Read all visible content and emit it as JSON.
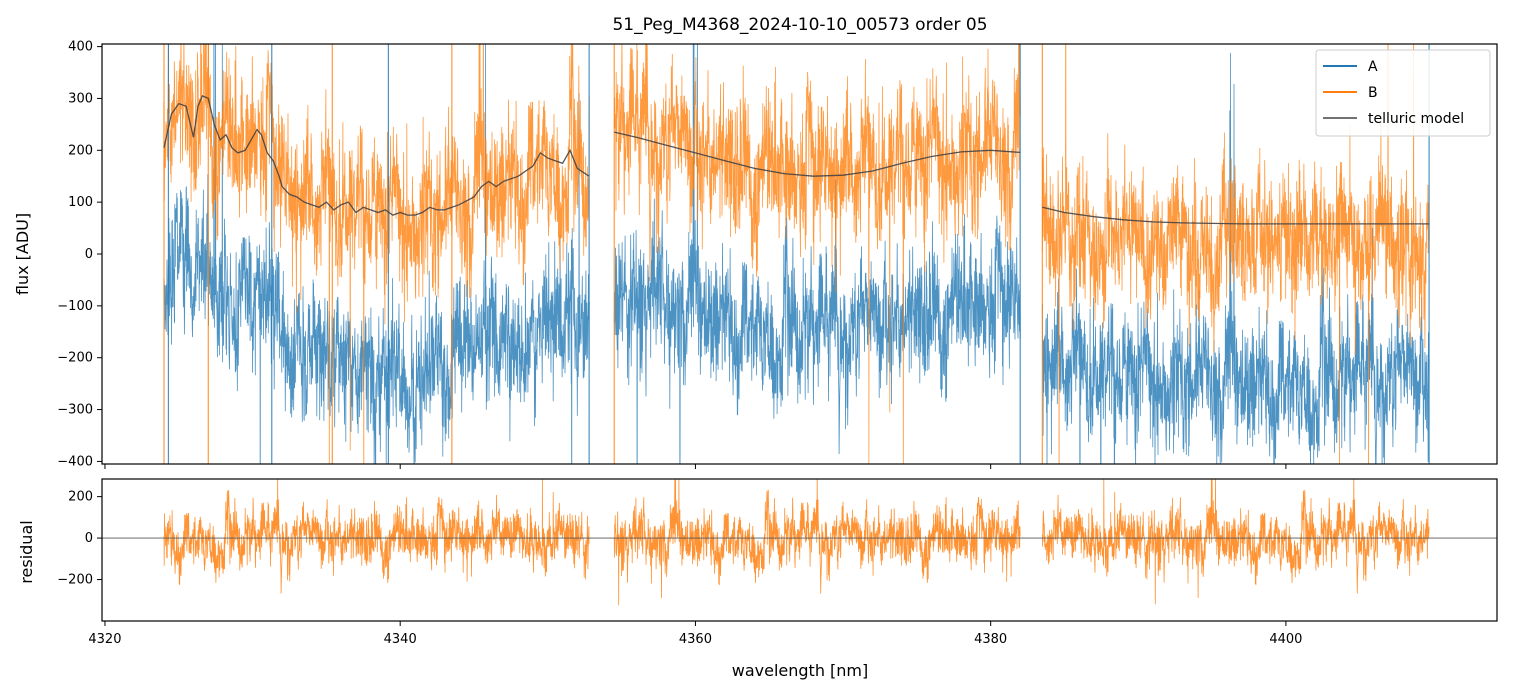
{
  "chart_data": [
    {
      "type": "line",
      "panel": "top",
      "title": "51_Peg_M4368_2024-10-10_00573  order 05",
      "xlabel": "",
      "ylabel": "flux [ADU]",
      "xlim": [
        4319.8,
        4414.3
      ],
      "ylim": [
        -405,
        405
      ],
      "yticks": [
        400,
        300,
        200,
        100,
        0,
        -100,
        -200,
        -300,
        -400
      ],
      "xticks": [
        4320,
        4340,
        4360,
        4380,
        4400
      ],
      "segments": [
        [
          4324.0,
          4352.8
        ],
        [
          4354.5,
          4382.0
        ],
        [
          4383.5,
          4409.7
        ]
      ],
      "series": [
        {
          "name": "A",
          "color": "#1f77b4",
          "mean_level": -170,
          "noise_amplitude": 90,
          "description_values": {
            "x_start": 4324.0,
            "x_end": 4409.7,
            "typical_range": [
              -330,
              0
            ]
          }
        },
        {
          "name": "B",
          "color": "#ff7f0e",
          "mean_level": 150,
          "noise_amplitude": 110,
          "description_values": {
            "x_start": 4324.0,
            "x_end": 4409.7,
            "typical_range": [
              0,
              400
            ]
          }
        },
        {
          "name": "telluric model",
          "color": "#444444",
          "x": [
            4324.0,
            4324.5,
            4325.0,
            4325.5,
            4326.0,
            4326.3,
            4326.6,
            4327.0,
            4327.4,
            4327.8,
            4328.2,
            4328.6,
            4329.0,
            4329.5,
            4330.0,
            4330.3,
            4330.6,
            4331.0,
            4331.4,
            4331.8,
            4332.0,
            4332.5,
            4333.0,
            4333.5,
            4334.0,
            4334.5,
            4335.0,
            4335.5,
            4336.0,
            4336.5,
            4337.0,
            4337.5,
            4338.0,
            4338.5,
            4339.0,
            4339.5,
            4340.0,
            4340.5,
            4341.0,
            4341.5,
            4342.0,
            4342.5,
            4343.0,
            4343.5,
            4344.0,
            4345.0,
            4345.5,
            4346.0,
            4346.5,
            4347.0,
            4348.0,
            4349.0,
            4349.5,
            4350.0,
            4350.5,
            4351.0,
            4351.5,
            4352.0,
            4352.8,
            4354.5,
            4356.0,
            4358.0,
            4360.0,
            4362.0,
            4364.0,
            4366.0,
            4368.0,
            4370.0,
            4372.0,
            4374.0,
            4376.0,
            4378.0,
            4380.0,
            4382.0,
            4383.5,
            4385.0,
            4387.0,
            4389.0,
            4391.0,
            4393.0,
            4395.0,
            4397.0,
            4399.0,
            4401.0,
            4403.0,
            4405.0,
            4407.0,
            4409.7
          ],
          "y": [
            205,
            270,
            290,
            285,
            225,
            285,
            305,
            300,
            250,
            220,
            230,
            205,
            195,
            200,
            225,
            240,
            230,
            195,
            180,
            150,
            130,
            115,
            110,
            100,
            95,
            90,
            100,
            85,
            95,
            100,
            80,
            90,
            85,
            80,
            85,
            75,
            80,
            75,
            75,
            80,
            90,
            85,
            85,
            90,
            95,
            110,
            130,
            140,
            130,
            140,
            150,
            170,
            195,
            185,
            180,
            175,
            200,
            165,
            150,
            235,
            225,
            210,
            195,
            180,
            165,
            155,
            150,
            152,
            160,
            175,
            188,
            197,
            200,
            196,
            90,
            80,
            72,
            66,
            62,
            60,
            59,
            58,
            58,
            58,
            58,
            58,
            58,
            58
          ]
        }
      ],
      "legend": {
        "placement": "upper-right",
        "entries": [
          "A",
          "B",
          "telluric model"
        ]
      }
    },
    {
      "type": "line",
      "panel": "bottom",
      "title": "",
      "xlabel": "wavelength [nm]",
      "ylabel": "residual",
      "xlim": [
        4319.8,
        4414.3
      ],
      "ylim": [
        -400,
        285
      ],
      "yticks": [
        200,
        0,
        -200
      ],
      "xticks": [
        4320,
        4340,
        4360,
        4380,
        4400
      ],
      "series": [
        {
          "name": "residual B",
          "color": "#ff7f0e",
          "mean_level": 0,
          "noise_amplitude": 80
        }
      ],
      "zero_line": 0
    }
  ]
}
